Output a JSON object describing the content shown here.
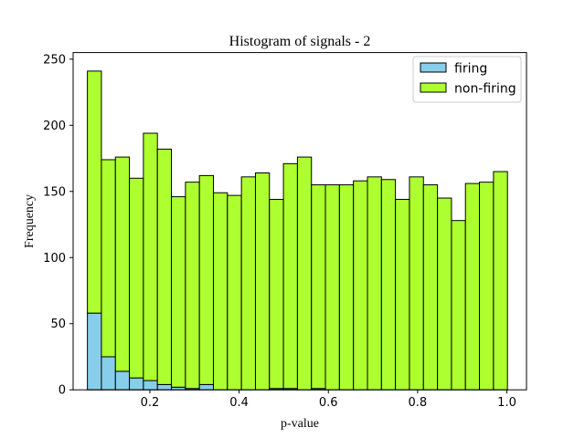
{
  "chart_data": {
    "type": "bar",
    "title": "Histogram of signals - 2",
    "xlabel": "p-value",
    "ylabel": "Frequency",
    "xlim": [
      0.028,
      1.044
    ],
    "ylim": [
      0,
      255
    ],
    "x_ticks": [
      0.2,
      0.4,
      0.6,
      0.8,
      1.0
    ],
    "x_tick_labels": [
      "0.2",
      "0.4",
      "0.6",
      "0.8",
      "1.0"
    ],
    "y_ticks": [
      0,
      50,
      100,
      150,
      200,
      250
    ],
    "y_tick_labels": [
      "0",
      "50",
      "100",
      "150",
      "200",
      "250"
    ],
    "bin_edges": [
      0.06,
      0.0914,
      0.1228,
      0.1541,
      0.1855,
      0.2169,
      0.2483,
      0.2797,
      0.311,
      0.3424,
      0.3738,
      0.4052,
      0.4366,
      0.4679,
      0.4993,
      0.5307,
      0.5621,
      0.5934,
      0.6248,
      0.6562,
      0.6876,
      0.719,
      0.7503,
      0.7817,
      0.8131,
      0.8445,
      0.8759,
      0.9072,
      0.9386,
      0.97,
      1.0014
    ],
    "stacked": true,
    "grid": false,
    "legend_position": "top-right",
    "series": [
      {
        "name": "firing",
        "color": "#87ceeb",
        "values": [
          58,
          25,
          14,
          9,
          7,
          4,
          2,
          1,
          4,
          0,
          0,
          0,
          0,
          1,
          1,
          0,
          1,
          0,
          0,
          0,
          0,
          0,
          0,
          0,
          0,
          0,
          0,
          0,
          0,
          0
        ]
      },
      {
        "name": "non-firing",
        "color": "#adff2f",
        "values": [
          183,
          149,
          162,
          151,
          187,
          178,
          144,
          156,
          158,
          149,
          147,
          161,
          164,
          143,
          170,
          176,
          154,
          155,
          155,
          158,
          161,
          159,
          144,
          161,
          155,
          145,
          128,
          156,
          157,
          165
        ]
      }
    ]
  }
}
